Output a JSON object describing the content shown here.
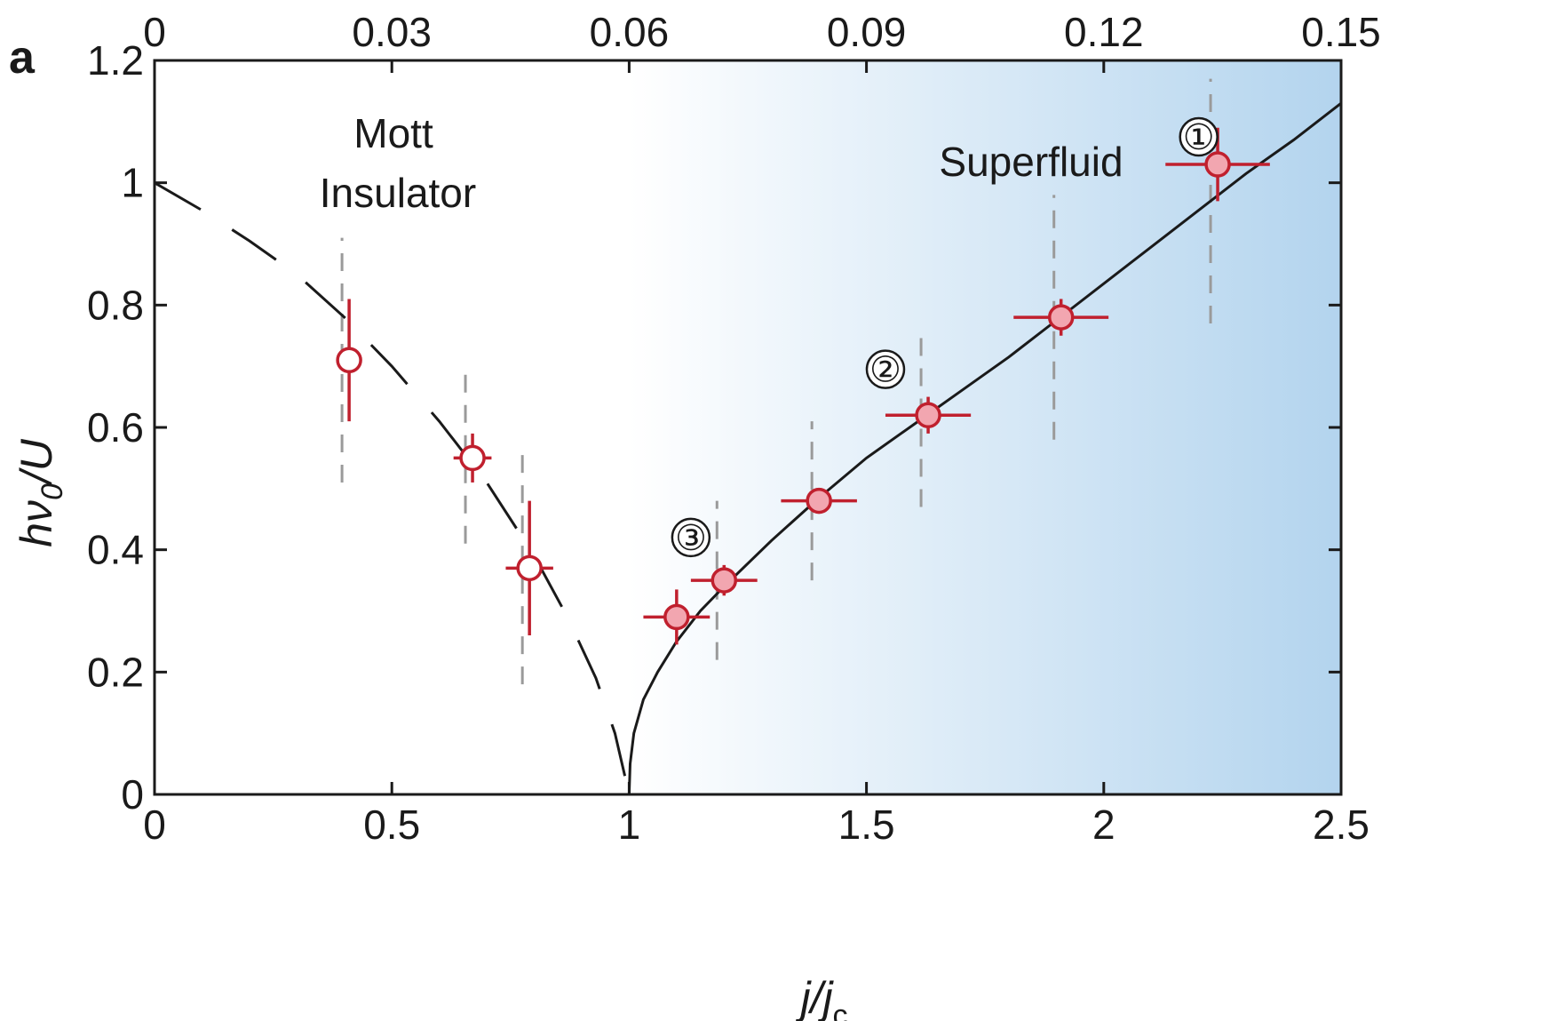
{
  "panel_label": "a",
  "colors": {
    "error_bar": "#c0202e",
    "marker_fill": "#f2a6b0",
    "marker_open_fill": "#ffffff",
    "curve": "#1a1a1a",
    "dashed_range": "#9a9a9a",
    "superfluid_gradient_start": "#ffffff",
    "superfluid_gradient_end": "#b3d4ee"
  },
  "chart_data": {
    "type": "scatter",
    "xlabel": "j/j",
    "xlabel_sub": "c",
    "ylabel": "hν",
    "ylabel_sub": "0",
    "ylabel_suffix": "/U",
    "xlim": [
      0,
      2.5
    ],
    "ylim": [
      0,
      1.2
    ],
    "x_ticks": [
      0,
      0.5,
      1,
      1.5,
      2,
      2.5
    ],
    "x_tick_labels": [
      "0",
      "0.5",
      "1",
      "1.5",
      "2",
      "2.5"
    ],
    "y_ticks": [
      0,
      0.2,
      0.4,
      0.6,
      0.8,
      1,
      1.2
    ],
    "y_tick_labels": [
      "0",
      "0.2",
      "0.4",
      "0.6",
      "0.8",
      "1",
      "1.2"
    ],
    "top_axis_ticks": [
      0,
      0.03,
      0.06,
      0.09,
      0.12,
      0.15
    ],
    "top_axis_tick_labels": [
      "0",
      "0.03",
      "0.06",
      "0.09",
      "0.12",
      "0.15"
    ],
    "regions": [
      {
        "label_lines": [
          "Mott",
          "Insulator"
        ],
        "x_range": [
          0,
          1
        ]
      },
      {
        "label_lines": [
          "Superfluid"
        ],
        "x_range": [
          1,
          2.5
        ]
      }
    ],
    "series": [
      {
        "marker": "open",
        "points": [
          {
            "x": 0.41,
            "y": 0.71,
            "xerr": 0.01,
            "yerr": 0.1,
            "range_low": 0.51,
            "range_high": 0.91
          },
          {
            "x": 0.67,
            "y": 0.55,
            "xerr": 0.04,
            "yerr": 0.04,
            "range_low": 0.41,
            "range_high": 0.69
          },
          {
            "x": 0.79,
            "y": 0.37,
            "xerr": 0.05,
            "yerr": 0.11,
            "range_low": 0.18,
            "range_high": 0.56
          }
        ]
      },
      {
        "marker": "filled",
        "points": [
          {
            "x": 1.1,
            "y": 0.29,
            "xerr": 0.07,
            "yerr": 0.045,
            "range_low": null,
            "range_high": null
          },
          {
            "x": 1.2,
            "y": 0.35,
            "xerr": 0.07,
            "yerr": 0.025,
            "range_low": 0.22,
            "range_high": 0.48
          },
          {
            "x": 1.4,
            "y": 0.48,
            "xerr": 0.08,
            "yerr": 0.02,
            "range_low": 0.35,
            "range_high": 0.61
          },
          {
            "x": 1.63,
            "y": 0.62,
            "xerr": 0.09,
            "yerr": 0.03,
            "range_low": 0.47,
            "range_high": 0.76
          },
          {
            "x": 1.91,
            "y": 0.78,
            "xerr": 0.1,
            "yerr": 0.03,
            "range_low": 0.58,
            "range_high": 0.98
          },
          {
            "x": 2.24,
            "y": 1.03,
            "xerr": 0.11,
            "yerr": 0.06,
            "range_low": 0.77,
            "range_high": 1.17
          }
        ]
      }
    ],
    "theory_superfluid": {
      "style": "solid",
      "x": [
        1.0,
        1.002,
        1.01,
        1.03,
        1.06,
        1.1,
        1.15,
        1.2,
        1.3,
        1.4,
        1.5,
        1.6,
        1.7,
        1.8,
        1.9,
        2.0,
        2.1,
        2.2,
        2.3,
        2.4,
        2.5
      ],
      "y": [
        0.0,
        0.05,
        0.1,
        0.155,
        0.2,
        0.25,
        0.3,
        0.34,
        0.415,
        0.485,
        0.55,
        0.605,
        0.66,
        0.715,
        0.775,
        0.835,
        0.895,
        0.955,
        1.015,
        1.07,
        1.13
      ]
    },
    "theory_mott": {
      "style": "dashed",
      "x": [
        0,
        0.1,
        0.2,
        0.3,
        0.4,
        0.5,
        0.6,
        0.7,
        0.8,
        0.87,
        0.93,
        0.97,
        1.0
      ],
      "y": [
        1.0,
        0.955,
        0.905,
        0.85,
        0.78,
        0.7,
        0.61,
        0.51,
        0.39,
        0.29,
        0.19,
        0.1,
        0.0
      ]
    },
    "annotations": [
      {
        "text": "①",
        "x": 2.2,
        "y": 1.075
      },
      {
        "text": "②",
        "x": 1.54,
        "y": 0.695
      },
      {
        "text": "③",
        "x": 1.13,
        "y": 0.42
      }
    ]
  }
}
